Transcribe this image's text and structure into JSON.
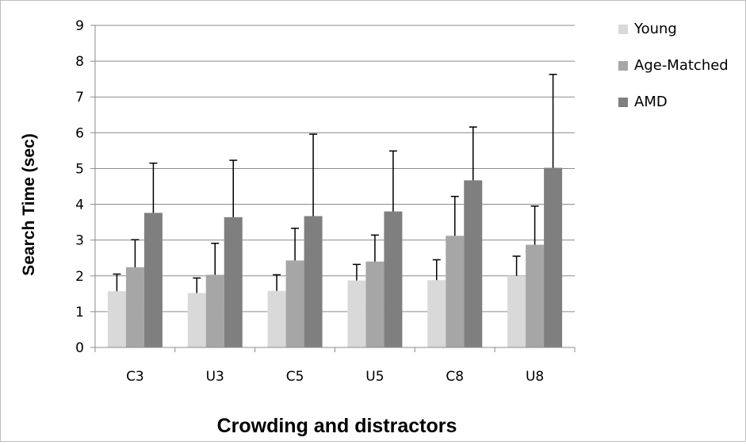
{
  "chart_data": {
    "type": "bar",
    "xlabel": "Crowding and distractors",
    "ylabel": "Search Time (sec)",
    "categories": [
      "C3",
      "U3",
      "C5",
      "U5",
      "C8",
      "U8"
    ],
    "ylim": [
      0,
      9
    ],
    "yticks": [
      "0",
      "1",
      "2",
      "3",
      "4",
      "5",
      "6",
      "7",
      "8",
      "9"
    ],
    "grid": true,
    "legend_position": "right",
    "series": [
      {
        "name": "Young",
        "color": "#d9d9d9",
        "values": [
          1.57,
          1.52,
          1.58,
          1.87,
          1.88,
          2.0
        ],
        "errors": [
          0.48,
          0.42,
          0.45,
          0.45,
          0.57,
          0.55
        ]
      },
      {
        "name": "Age-Matched",
        "color": "#a6a6a6",
        "values": [
          2.24,
          2.03,
          2.43,
          2.4,
          3.12,
          2.87
        ],
        "errors": [
          0.77,
          0.88,
          0.9,
          0.74,
          1.1,
          1.08
        ]
      },
      {
        "name": "AMD",
        "color": "#7f7f7f",
        "values": [
          3.76,
          3.64,
          3.67,
          3.8,
          4.67,
          5.02
        ],
        "errors": [
          1.39,
          1.59,
          2.29,
          1.69,
          1.49,
          2.61
        ]
      }
    ]
  }
}
